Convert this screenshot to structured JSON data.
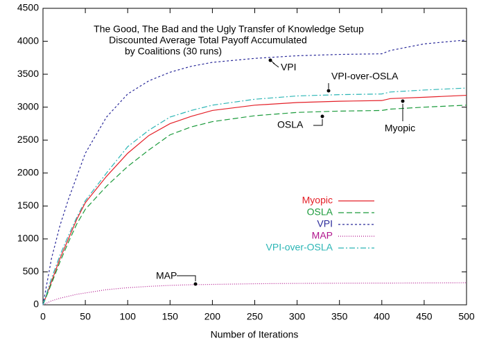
{
  "chart_data": {
    "type": "line",
    "title": [
      "The Good, The Bad and the Ugly Transfer of Knowledge Setup",
      "Discounted Average Total Payoff Accumulated",
      "by Coalitions (30 runs)"
    ],
    "xlabel": "Number of Iterations",
    "x": [
      0,
      10,
      20,
      30,
      40,
      50,
      75,
      100,
      125,
      150,
      175,
      200,
      250,
      300,
      350,
      400,
      410,
      450,
      500
    ],
    "series": [
      {
        "name": "Myopic",
        "color": "#e41e26",
        "dash": "solid",
        "values": [
          0,
          350,
          700,
          1000,
          1300,
          1550,
          1950,
          2300,
          2570,
          2750,
          2860,
          2950,
          3030,
          3070,
          3090,
          3100,
          3130,
          3150,
          3180
        ]
      },
      {
        "name": "OSLA",
        "color": "#1a9a3a",
        "dash": "dashed",
        "values": [
          0,
          320,
          650,
          950,
          1230,
          1450,
          1800,
          2100,
          2350,
          2580,
          2700,
          2780,
          2870,
          2920,
          2940,
          2950,
          2970,
          3000,
          3030
        ]
      },
      {
        "name": "VPI",
        "color": "#2a2a9a",
        "dash": "short-dashed",
        "values": [
          0,
          700,
          1200,
          1600,
          1950,
          2300,
          2850,
          3200,
          3400,
          3530,
          3620,
          3680,
          3740,
          3780,
          3800,
          3810,
          3860,
          3960,
          4020
        ]
      },
      {
        "name": "MAP",
        "color": "#b0148c",
        "dash": "dotted",
        "values": [
          0,
          60,
          100,
          130,
          160,
          180,
          230,
          260,
          280,
          295,
          305,
          310,
          320,
          325,
          328,
          330,
          330,
          332,
          335
        ]
      },
      {
        "name": "VPI-over-OSLA",
        "color": "#2ab5b5",
        "dash": "dash-dot",
        "values": [
          0,
          400,
          750,
          1050,
          1330,
          1580,
          2000,
          2400,
          2650,
          2850,
          2950,
          3030,
          3120,
          3170,
          3190,
          3200,
          3230,
          3260,
          3290
        ]
      }
    ],
    "annotations": [
      "VPI",
      "VPI-over-OSLA",
      "OSLA",
      "Myopic",
      "MAP"
    ],
    "xlim": [
      0,
      500
    ],
    "xticks": [
      0,
      50,
      100,
      150,
      200,
      250,
      300,
      350,
      400,
      450,
      500
    ],
    "ylim": [
      0,
      4500
    ],
    "yticks": [
      0,
      500,
      1000,
      1500,
      2000,
      2500,
      3000,
      3500,
      4000,
      4500
    ],
    "grid": false,
    "legend": "right"
  }
}
